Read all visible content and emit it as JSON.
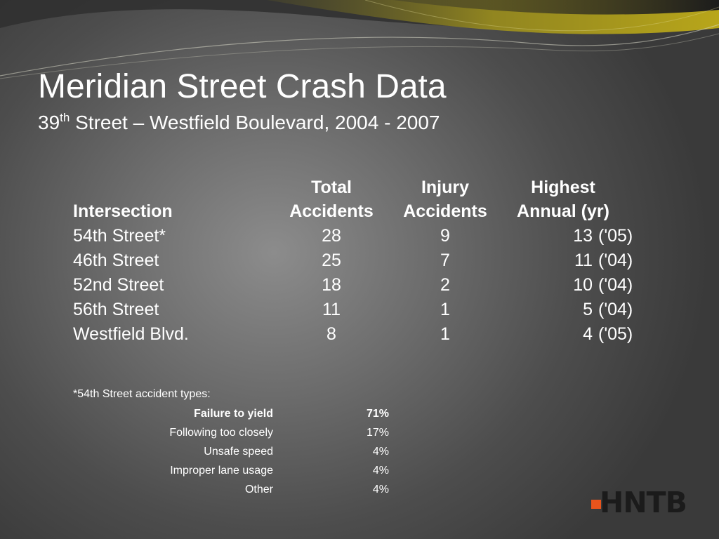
{
  "slide": {
    "title": "Meridian Street Crash Data",
    "subtitle": {
      "prefix": "39",
      "sup": "th",
      "rest": " Street – Westfield Boulevard, 2004 - 2007"
    }
  },
  "table": {
    "headers": {
      "intersection": "Intersection",
      "total_line1": "Total",
      "total_line2": "Accidents",
      "injury_line1": "Injury",
      "injury_line2": "Accidents",
      "highest_line1": "Highest",
      "highest_line2": "Annual (yr)"
    },
    "rows": [
      {
        "name": "54th Street*",
        "total": "28",
        "injury": "9",
        "highest": "13",
        "year": "('05)"
      },
      {
        "name": "46th Street",
        "total": "25",
        "injury": "7",
        "highest": "11",
        "year": "('04)"
      },
      {
        "name": "52nd Street",
        "total": "18",
        "injury": "2",
        "highest": "10",
        "year": "('04)"
      },
      {
        "name": "56th Street",
        "total": "11",
        "injury": "1",
        "highest": "5",
        "year": "('04)"
      },
      {
        "name": "Westfield Blvd.",
        "total": "8",
        "injury": "1",
        "highest": "4",
        "year": "('05)"
      }
    ]
  },
  "accident_types": {
    "note": "*54th Street accident types:",
    "items": [
      {
        "label": "Failure to yield",
        "pct": "71%",
        "bold": true
      },
      {
        "label": "Following too closely",
        "pct": "17%",
        "bold": false
      },
      {
        "label": "Unsafe speed",
        "pct": "4%",
        "bold": false
      },
      {
        "label": "Improper lane usage",
        "pct": "4%",
        "bold": false
      },
      {
        "label": "Other",
        "pct": "4%",
        "bold": false
      }
    ]
  },
  "logo": {
    "text": "HNTB",
    "accent_color": "#e8541c"
  }
}
